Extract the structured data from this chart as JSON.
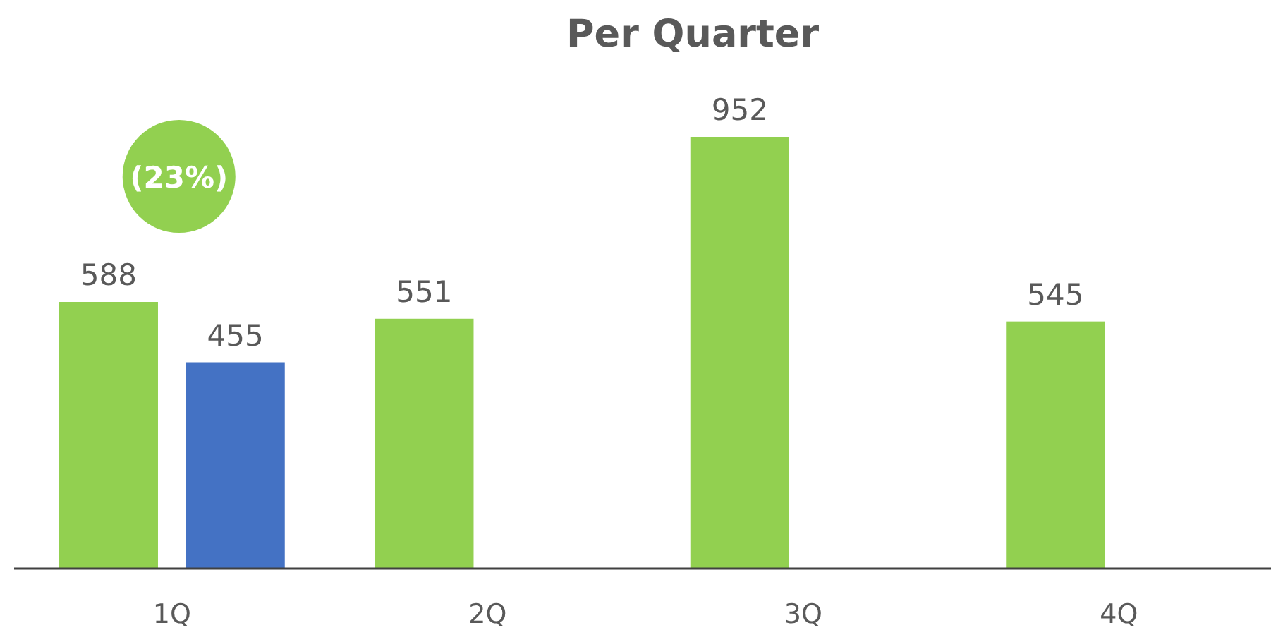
{
  "chart_data": {
    "type": "bar",
    "title": "Per Quarter",
    "categories": [
      "1Q",
      "2Q",
      "3Q",
      "4Q"
    ],
    "series": [
      {
        "color": "#92d050",
        "values": [
          588,
          551,
          952,
          545
        ]
      },
      {
        "color": "#4472c4",
        "values": [
          455,
          null,
          null,
          null
        ]
      }
    ],
    "data_labels": true,
    "annotations": [
      "(23%)"
    ]
  }
}
